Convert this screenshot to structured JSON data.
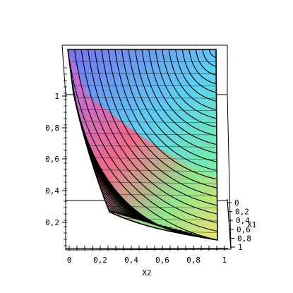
{
  "chart_data": {
    "type": "surface",
    "xlabel": "X2",
    "ylabel": "X1",
    "x_ticks": [
      "0",
      "0,2",
      "0,4",
      "0,6",
      "0,8",
      "1"
    ],
    "y_ticks": [
      "0",
      "0,2",
      "0,4",
      "0,6",
      "0,8",
      "1"
    ],
    "z_ticks": [
      "0,2",
      "0,4",
      "0,6",
      "0,8",
      "1"
    ],
    "xlim": [
      0,
      1
    ],
    "ylim": [
      0,
      1
    ],
    "zlim": [
      0.1,
      1.1
    ],
    "grid": false,
    "legend": "none",
    "colormap": [
      "#f06a8c",
      "#8a6ef0",
      "#4fd9ff",
      "#7af0a0",
      "#f0e070"
    ]
  }
}
